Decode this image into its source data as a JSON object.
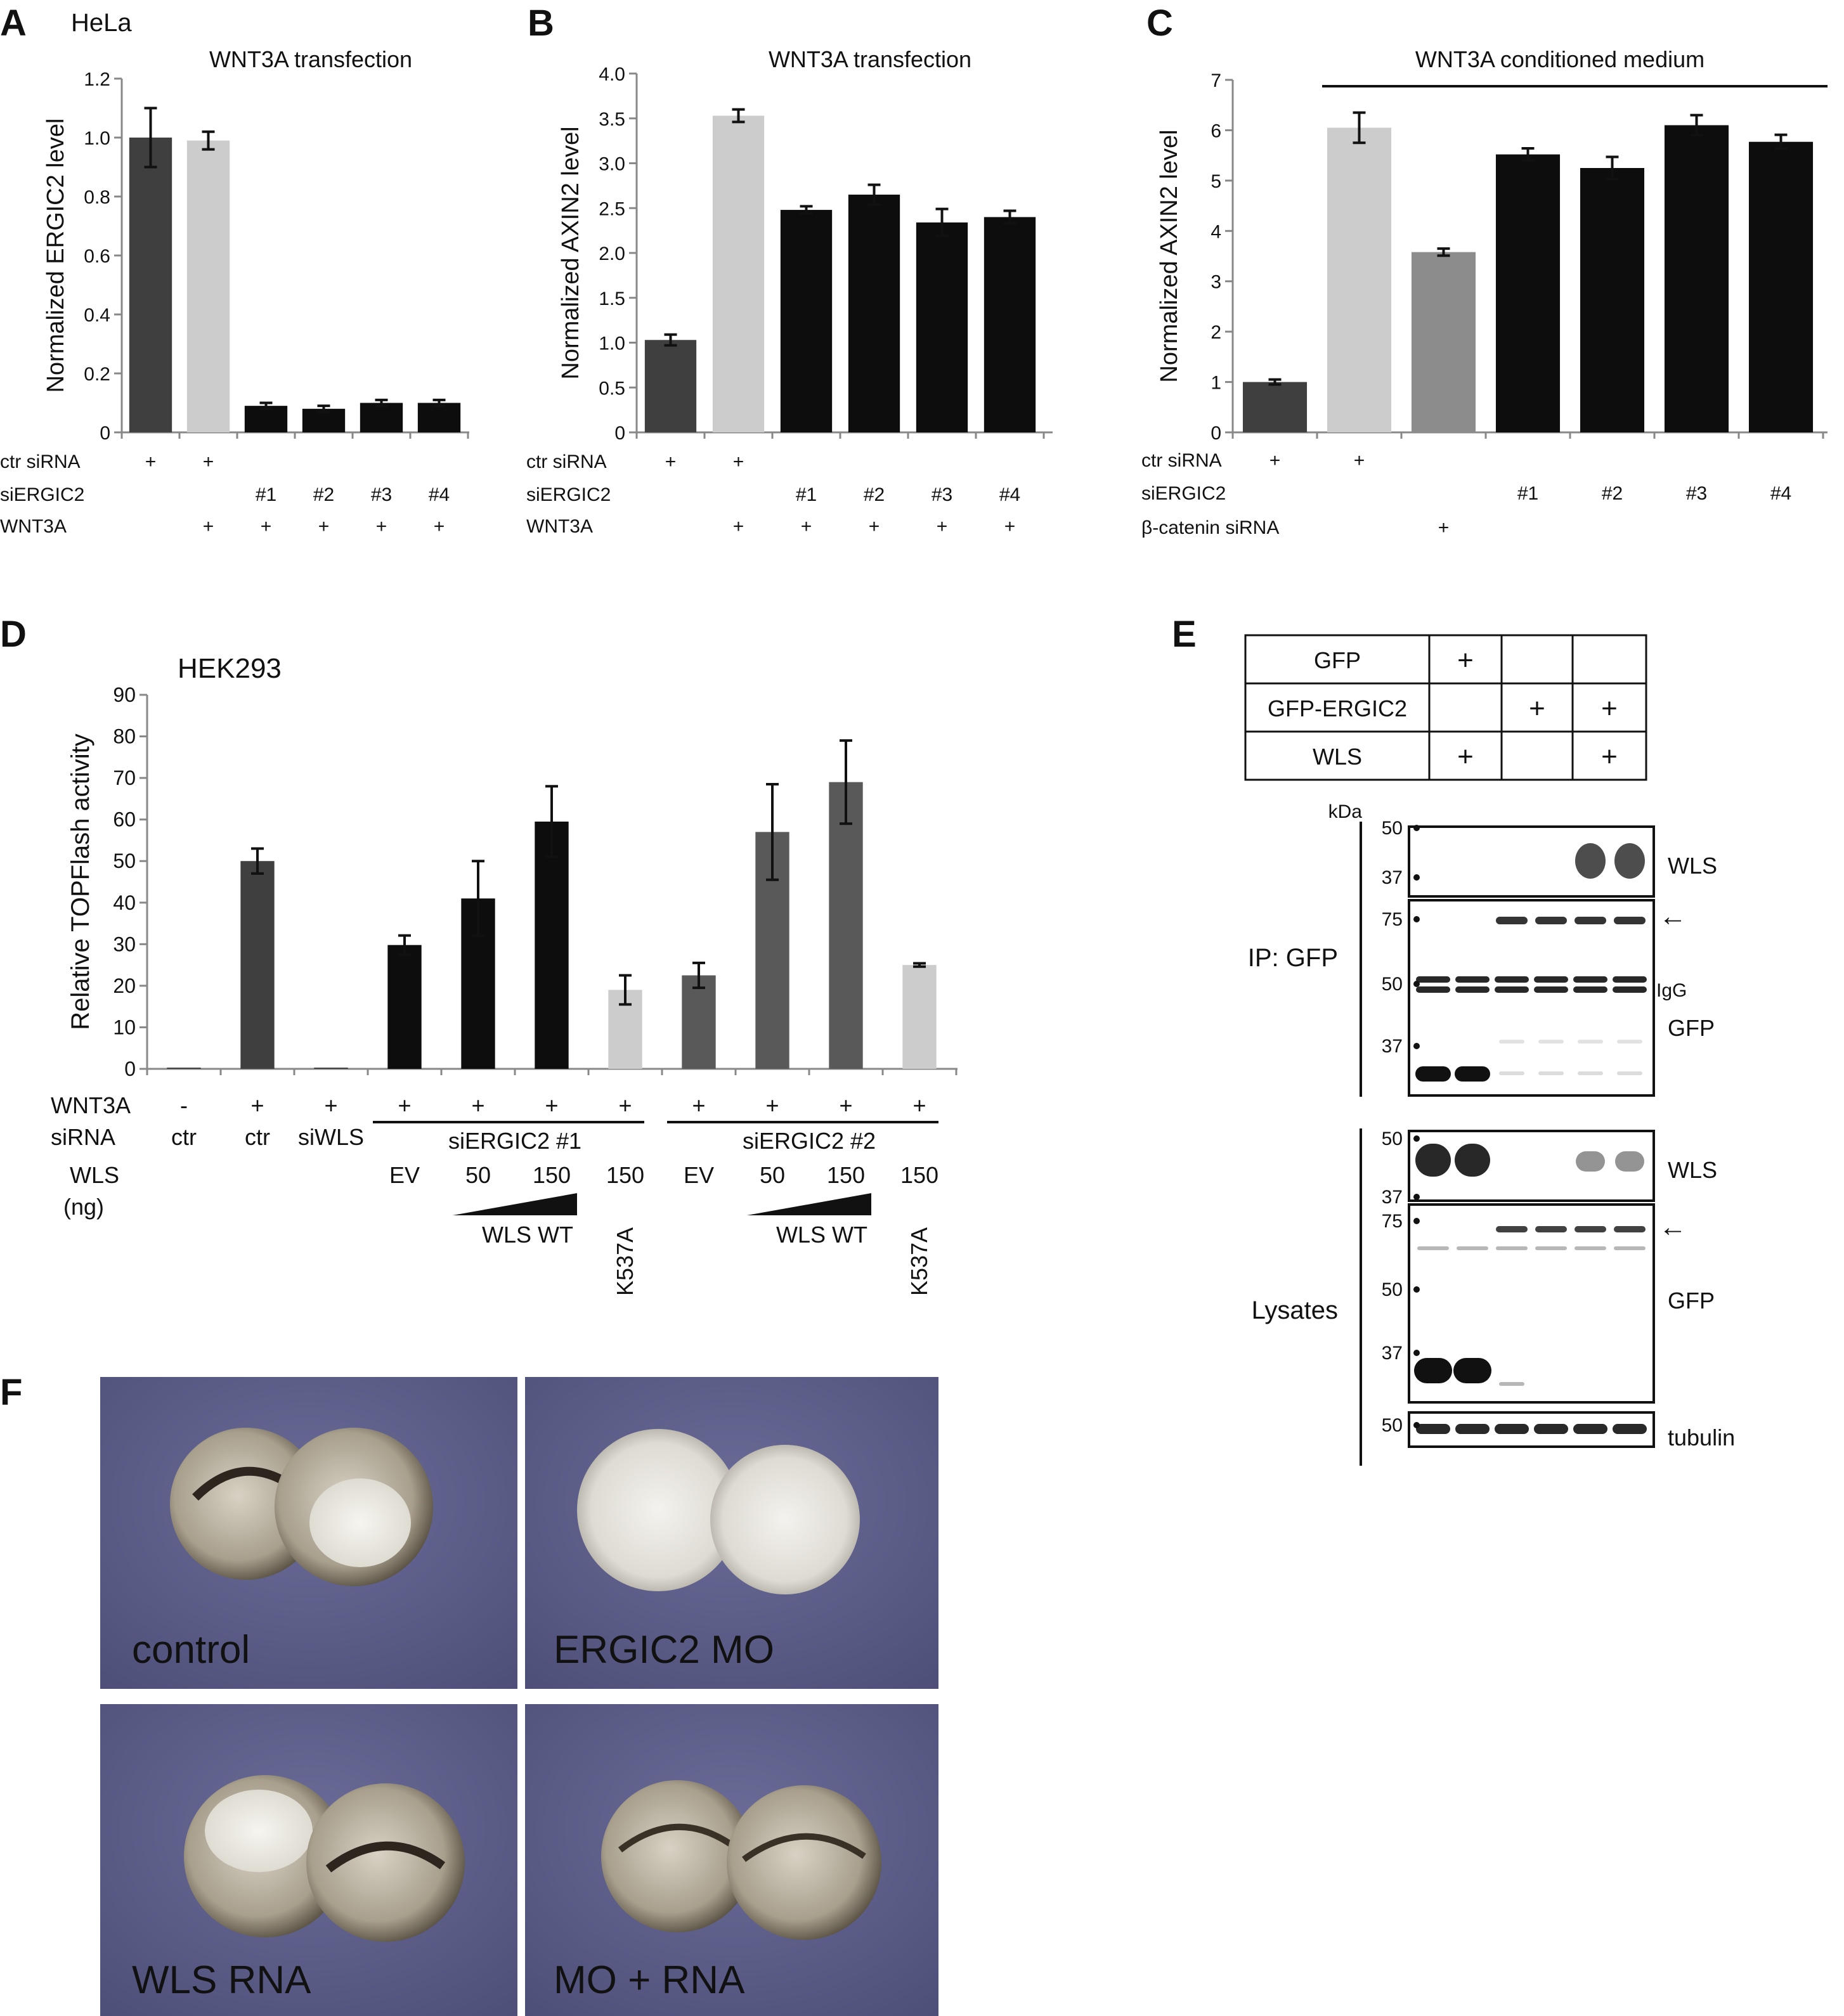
{
  "panels": {
    "A": {
      "letter": "A",
      "cell_line": "HeLa",
      "title": "WNT3A transfection",
      "conditions": {
        "labels": [
          "ctr siRNA",
          "siERGIC2",
          "WNT3A"
        ],
        "rows": [
          [
            "+",
            "+",
            "",
            "",
            "",
            ""
          ],
          [
            "",
            "",
            "#1",
            "#2",
            "#3",
            "#4"
          ],
          [
            "",
            "+",
            "+",
            "+",
            "+",
            "+"
          ]
        ]
      }
    },
    "B": {
      "letter": "B",
      "title": "WNT3A transfection",
      "conditions": {
        "labels": [
          "ctr siRNA",
          "siERGIC2",
          "WNT3A"
        ],
        "rows": [
          [
            "+",
            "+",
            "",
            "",
            "",
            ""
          ],
          [
            "",
            "",
            "#1",
            "#2",
            "#3",
            "#4"
          ],
          [
            "",
            "+",
            "+",
            "+",
            "+",
            "+"
          ]
        ]
      }
    },
    "C": {
      "letter": "C",
      "title": "WNT3A conditioned medium",
      "conditions": {
        "labels": [
          "ctr siRNA",
          "siERGIC2",
          "β-catenin siRNA"
        ],
        "rows": [
          [
            "+",
            "+",
            "",
            "",
            "",
            "",
            ""
          ],
          [
            "",
            "",
            "",
            "#1",
            "#2",
            "#3",
            "#4"
          ],
          [
            "",
            "",
            "+",
            "",
            "",
            "",
            ""
          ]
        ]
      }
    },
    "D": {
      "letter": "D",
      "cell_line": "HEK293",
      "row_labels": [
        "WNT3A",
        "siRNA",
        "WLS",
        "(ng)"
      ],
      "wnt3a": [
        "-",
        "+",
        "+",
        "+",
        "+",
        "+",
        "+",
        "+",
        "+",
        "+",
        "+"
      ],
      "sirna": [
        "ctr",
        "ctr",
        "siWLS"
      ],
      "group1": "siERGIC2 #1",
      "group2": "siERGIC2 #2",
      "wls_ng": [
        "EV",
        "50",
        "150",
        "150",
        "EV",
        "50",
        "150",
        "150"
      ],
      "wt_label": "WLS WT",
      "mutant": "K537A"
    },
    "E": {
      "letter": "E",
      "table_rows": [
        {
          "label": "GFP",
          "marks": [
            "+",
            "",
            ""
          ]
        },
        {
          "label": "GFP-ERGIC2",
          "marks": [
            "",
            "+",
            "+"
          ]
        },
        {
          "label": "WLS",
          "marks": [
            "+",
            "",
            "+"
          ]
        }
      ],
      "kda": "kDa",
      "ip_label": "IP: GFP",
      "lysate_label": "Lysates",
      "blots": [
        {
          "name": "WLS",
          "markers": [
            "50",
            "37"
          ]
        },
        {
          "name": "GFP",
          "markers": [
            "75",
            "50",
            "37"
          ],
          "extra": "IgG"
        },
        {
          "name": "WLS",
          "markers": [
            "50",
            "37"
          ]
        },
        {
          "name": "GFP",
          "markers": [
            "75",
            "50",
            "37"
          ]
        },
        {
          "name": "tubulin",
          "markers": [
            "50"
          ]
        }
      ],
      "arrow": "←"
    },
    "F": {
      "letter": "F",
      "photos": [
        "control",
        "ERGIC2 MO",
        "WLS RNA",
        "MO + RNA"
      ]
    }
  },
  "colors": {
    "dark_gray": "#3f3f3f",
    "light_gray": "#cccccc",
    "mid_gray": "#8c8c8c",
    "black": "#0d0d0d",
    "d_gray": "#595959",
    "photo_bg": "#5b5d88"
  },
  "chart_data": [
    {
      "id": "A",
      "type": "bar",
      "title": "WNT3A transfection",
      "ylabel": "Normalized ERGIC2 level",
      "ylim": [
        0,
        1.2
      ],
      "yticks": [
        "0",
        "0.2",
        "0.4",
        "0.6",
        "0.8",
        "1.0",
        "1.2"
      ],
      "values": [
        1.0,
        0.99,
        0.09,
        0.08,
        0.1,
        0.1
      ],
      "errors": [
        0.1,
        0.03,
        0.01,
        0.01,
        0.01,
        0.01
      ],
      "bar_colors": [
        "#3f3f3f",
        "#cccccc",
        "#0d0d0d",
        "#0d0d0d",
        "#0d0d0d",
        "#0d0d0d"
      ],
      "grid": false
    },
    {
      "id": "B",
      "type": "bar",
      "title": "WNT3A transfection",
      "ylabel": "Normalized AXIN2 level",
      "ylim": [
        0,
        4.0
      ],
      "yticks": [
        "0",
        "0.5",
        "1.0",
        "1.5",
        "2.0",
        "2.5",
        "3.0",
        "3.5",
        "4.0"
      ],
      "values": [
        1.03,
        3.53,
        2.48,
        2.65,
        2.34,
        2.4
      ],
      "errors": [
        0.06,
        0.07,
        0.04,
        0.11,
        0.15,
        0.07
      ],
      "bar_colors": [
        "#3f3f3f",
        "#cccccc",
        "#0d0d0d",
        "#0d0d0d",
        "#0d0d0d",
        "#0d0d0d"
      ],
      "grid": false
    },
    {
      "id": "C",
      "type": "bar",
      "title": "WNT3A conditioned medium",
      "ylabel": "Normalized AXIN2 level",
      "ylim": [
        0,
        7
      ],
      "yticks": [
        "0",
        "1",
        "2",
        "3",
        "4",
        "5",
        "6",
        "7"
      ],
      "values": [
        1.0,
        6.05,
        3.58,
        5.52,
        5.25,
        6.1,
        5.77
      ],
      "errors": [
        0.05,
        0.3,
        0.07,
        0.12,
        0.22,
        0.2,
        0.14
      ],
      "bar_colors": [
        "#3f3f3f",
        "#cccccc",
        "#8c8c8c",
        "#0d0d0d",
        "#0d0d0d",
        "#0d0d0d",
        "#0d0d0d"
      ],
      "grid": false
    },
    {
      "id": "D",
      "type": "bar",
      "ylabel": "Relative TOPFlash activity",
      "ylim": [
        0,
        90
      ],
      "yticks": [
        "0",
        "10",
        "20",
        "30",
        "40",
        "50",
        "60",
        "70",
        "80",
        "90"
      ],
      "values": [
        0.3,
        50,
        0.3,
        29.8,
        41,
        59.5,
        19,
        22.5,
        57,
        69,
        25
      ],
      "errors": [
        0,
        3,
        0,
        2.3,
        9,
        8.5,
        3.5,
        3,
        11.5,
        10,
        0.4
      ],
      "bar_colors": [
        "#3f3f3f",
        "#3f3f3f",
        "#3f3f3f",
        "#0d0d0d",
        "#0d0d0d",
        "#0d0d0d",
        "#cccccc",
        "#595959",
        "#595959",
        "#595959",
        "#cccccc"
      ],
      "grid": false
    }
  ]
}
